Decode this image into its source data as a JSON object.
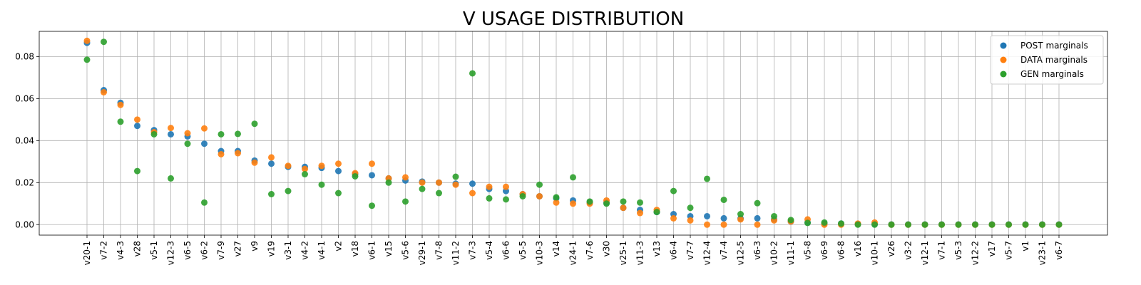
{
  "chart_data": {
    "type": "scatter",
    "title": "V USAGE DISTRIBUTION",
    "xlabel": "",
    "ylabel": "",
    "categories": [
      "v20-1",
      "v7-2",
      "v4-3",
      "v28",
      "v5-1",
      "v12-3",
      "v6-5",
      "v6-2",
      "v7-9",
      "v27",
      "v9",
      "v19",
      "v3-1",
      "v4-2",
      "v4-1",
      "v2",
      "v18",
      "v6-1",
      "v15",
      "v5-6",
      "v29-1",
      "v7-8",
      "v11-2",
      "v7-3",
      "v5-4",
      "v6-6",
      "v5-5",
      "v10-3",
      "v14",
      "v24-1",
      "v7-6",
      "v30",
      "v25-1",
      "v11-3",
      "v13",
      "v6-4",
      "v7-7",
      "v12-4",
      "v7-4",
      "v12-5",
      "v6-3",
      "v10-2",
      "v11-1",
      "v5-8",
      "v6-9",
      "v6-8",
      "v16",
      "v10-1",
      "v26",
      "v3-2",
      "v12-1",
      "v7-1",
      "v5-3",
      "v12-2",
      "v17",
      "v5-7",
      "v1",
      "v23-1",
      "v6-7"
    ],
    "yticks": [
      "0.00",
      "0.02",
      "0.04",
      "0.06",
      "0.08"
    ],
    "ylim": [
      -0.005,
      0.092
    ],
    "grid": true,
    "legend_position": "top-right",
    "series": [
      {
        "name": "POST marginals",
        "color": "#1f77b4",
        "values": [
          0.0865,
          0.064,
          0.058,
          0.047,
          0.045,
          0.043,
          0.042,
          0.0385,
          0.035,
          0.035,
          0.0305,
          0.029,
          0.0275,
          0.0275,
          0.027,
          0.0255,
          0.024,
          0.0235,
          0.022,
          0.021,
          0.0205,
          0.02,
          0.0195,
          0.0195,
          0.017,
          0.016,
          0.0145,
          0.0135,
          0.0125,
          0.0115,
          0.0105,
          0.0105,
          0.008,
          0.007,
          0.006,
          0.005,
          0.004,
          0.004,
          0.003,
          0.003,
          0.003,
          0.0025,
          0.0015,
          0.001,
          0.0005,
          0.0005,
          0.0003,
          0.0003,
          0.0001,
          0.0001,
          0.0001,
          0.0001,
          0.0001,
          0.0001,
          0.0001,
          0.0001,
          0.0001,
          0.0001,
          0.0001
        ]
      },
      {
        "name": "DATA marginals",
        "color": "#ff7f0e",
        "values": [
          0.0875,
          0.063,
          0.057,
          0.05,
          0.044,
          0.046,
          0.0435,
          0.0458,
          0.0335,
          0.034,
          0.0295,
          0.032,
          0.028,
          0.0265,
          0.028,
          0.029,
          0.0245,
          0.029,
          0.022,
          0.0225,
          0.02,
          0.02,
          0.019,
          0.015,
          0.018,
          0.018,
          0.0145,
          0.0135,
          0.0105,
          0.01,
          0.01,
          0.0115,
          0.008,
          0.0055,
          0.007,
          0.003,
          0.002,
          0.0,
          0.0,
          0.0025,
          0.0,
          0.002,
          0.0015,
          0.0025,
          0.0,
          0.0,
          0.0005,
          0.001,
          0.0,
          0.0,
          0.0,
          0.0,
          0.0,
          0.0,
          0.0,
          0.0,
          0.0,
          0.0,
          0.0
        ]
      },
      {
        "name": "GEN marginals",
        "color": "#2ca02c",
        "values": [
          0.0785,
          0.087,
          0.049,
          0.0255,
          0.043,
          0.022,
          0.0385,
          0.0105,
          0.043,
          0.0432,
          0.048,
          0.0145,
          0.016,
          0.024,
          0.019,
          0.015,
          0.023,
          0.009,
          0.02,
          0.011,
          0.017,
          0.015,
          0.0228,
          0.072,
          0.0125,
          0.012,
          0.0135,
          0.019,
          0.013,
          0.0225,
          0.011,
          0.01,
          0.011,
          0.0105,
          0.006,
          0.016,
          0.008,
          0.0218,
          0.0118,
          0.005,
          0.0102,
          0.004,
          0.0022,
          0.0008,
          0.001,
          0.0005,
          0.0,
          0.0,
          0.0,
          0.0,
          0.0,
          0.0,
          0.0,
          0.0,
          0.0,
          0.0,
          0.0,
          0.0,
          0.0
        ]
      }
    ]
  }
}
